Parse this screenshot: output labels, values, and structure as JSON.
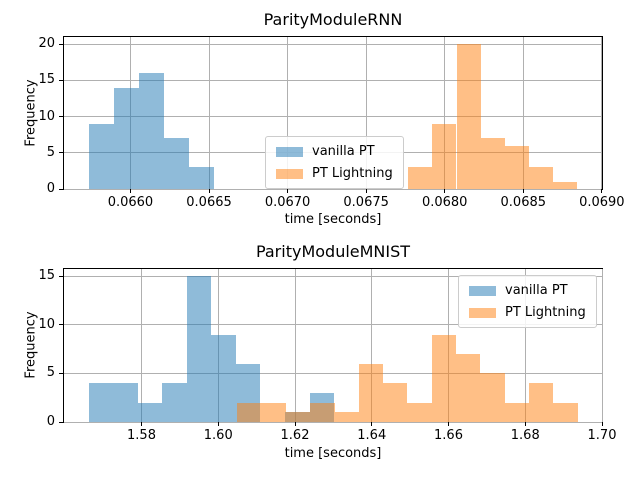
{
  "figure": {
    "background": "#ffffff",
    "grid_color": "#b0b0b0",
    "spine_color": "#000000",
    "text_color": "#000000",
    "bar_alpha": 0.5
  },
  "chart_data": [
    {
      "type": "histogram",
      "title": "ParityModuleRNN",
      "xlabel": "time [seconds]",
      "ylabel": "Frequency",
      "xlim": [
        0.065577,
        0.069001
      ],
      "ylim": [
        0,
        21
      ],
      "grid": true,
      "legend_position": "center",
      "xticks": {
        "values": [
          0.066,
          0.0665,
          0.067,
          0.0675,
          0.068,
          0.0685,
          0.069
        ],
        "labels": [
          "0.0660",
          "0.0665",
          "0.0670",
          "0.0675",
          "0.0680",
          "0.0685",
          "0.0690"
        ]
      },
      "yticks": {
        "values": [
          0,
          5,
          10,
          15,
          20
        ],
        "labels": [
          "0",
          "5",
          "10",
          "15",
          "20"
        ]
      },
      "series": [
        {
          "name": "vanilla PT",
          "color": "#1f77b4",
          "fill_alpha": 0.5,
          "bin_start": 0.065733,
          "bin_width": 0.00016,
          "counts": [
            9,
            14,
            16,
            7,
            3
          ]
        },
        {
          "name": "PT Lightning",
          "color": "#ff7f0e",
          "fill_alpha": 0.5,
          "bin_start": 0.067767,
          "bin_width": 0.000154,
          "counts": [
            3,
            9,
            20,
            7,
            6,
            3,
            1
          ]
        }
      ]
    },
    {
      "type": "histogram",
      "title": "ParityModuleMNIST",
      "xlabel": "time [seconds]",
      "ylabel": "Frequency",
      "xlim": [
        1.5598,
        1.7
      ],
      "ylim": [
        0,
        15.75
      ],
      "grid": true,
      "legend_position": "upper right",
      "xticks": {
        "values": [
          1.58,
          1.6,
          1.62,
          1.64,
          1.66,
          1.68,
          1.7
        ],
        "labels": [
          "1.58",
          "1.60",
          "1.62",
          "1.64",
          "1.66",
          "1.68",
          "1.70"
        ]
      },
      "yticks": {
        "values": [
          0,
          5,
          10,
          15
        ],
        "labels": [
          "0",
          "5",
          "10",
          "15"
        ]
      },
      "series": [
        {
          "name": "vanilla PT",
          "color": "#1f77b4",
          "fill_alpha": 0.5,
          "bin_start": 1.5662,
          "bin_width": 0.0064,
          "counts": [
            4,
            4,
            2,
            4,
            15,
            9,
            6,
            0,
            1,
            3
          ]
        },
        {
          "name": "PT Lightning",
          "color": "#ff7f0e",
          "fill_alpha": 0.5,
          "bin_start": 1.605,
          "bin_width": 0.00633,
          "counts": [
            2,
            2,
            1,
            2,
            1,
            6,
            4,
            2,
            9,
            7,
            5,
            2,
            4,
            2
          ]
        }
      ]
    }
  ]
}
